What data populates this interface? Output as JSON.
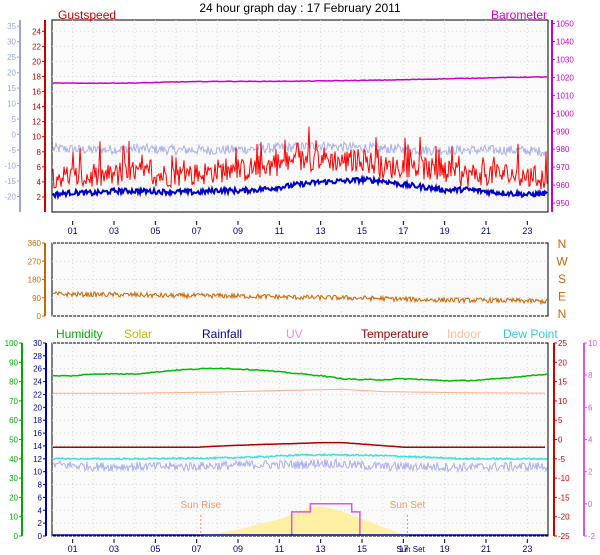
{
  "title": "24 hour graph day : 17 February 2011",
  "hour_labels": [
    "01",
    "03",
    "05",
    "07",
    "09",
    "11",
    "13",
    "15",
    "17",
    "19",
    "21",
    "23"
  ],
  "sun": {
    "rise_label": "Sun Rise",
    "set_label": "Sun Set",
    "sun_set_tick": "Sun Set",
    "rise_hour": 7.2,
    "set_hour": 17.2
  },
  "colors": {
    "gustspeed": "#ff0000",
    "windspeed": "#0000cc",
    "windchill": "#aab0ee",
    "barometer": "#cc00cc",
    "direction": "#cc6600",
    "humidity": "#00bb00",
    "solar": "#ffee99",
    "rainfall": "#0000aa",
    "uv": "#dd55dd",
    "temperature": "#aa0000",
    "indoor": "#ffaa88",
    "dewpoint": "#44dddd",
    "hour_labels": "#000080"
  },
  "chart_data": [
    {
      "type": "line",
      "name": "wind-barometer",
      "legend": {
        "gustspeed": "Gustspeed",
        "barometer": "Barometer"
      },
      "x_range_hours": [
        0,
        24
      ],
      "axes": {
        "wind_left": {
          "ticks": [
            2,
            4,
            6,
            8,
            10,
            12,
            14,
            16,
            18,
            20,
            22,
            24
          ],
          "range": [
            0,
            25.5
          ]
        },
        "temp_outer_left": {
          "ticks": [
            35,
            30,
            25,
            20,
            15,
            10,
            5,
            0,
            -5,
            -10,
            -15,
            -20
          ],
          "range": [
            -25,
            37
          ]
        },
        "pressure_right": {
          "ticks": [
            950,
            960,
            970,
            980,
            990,
            1000,
            1010,
            1020,
            1030,
            1040,
            1050
          ],
          "range": [
            945,
            1052
          ]
        }
      },
      "series": [
        {
          "name": "Gustspeed",
          "axis": "wind_left",
          "x": [
            0,
            1,
            2,
            3,
            4,
            5,
            6,
            7,
            8,
            9,
            10,
            11,
            12,
            13,
            14,
            15,
            16,
            17,
            18,
            19,
            20,
            21,
            22,
            23,
            24
          ],
          "y": [
            4.8,
            4.6,
            4.6,
            4.9,
            5.2,
            4.9,
            4.9,
            5.0,
            5.5,
            5.4,
            6.0,
            6.4,
            6.8,
            7.2,
            6.7,
            7.0,
            5.8,
            6.2,
            5.8,
            5.1,
            4.9,
            5.1,
            5.0,
            4.7,
            4.3
          ]
        },
        {
          "x": [
            0,
            1,
            2,
            3,
            4,
            5,
            6,
            7,
            8,
            9,
            10,
            11,
            12,
            13,
            14,
            15,
            16,
            17,
            18,
            19,
            20,
            21,
            22,
            23,
            24
          ],
          "y": [
            2.3,
            2.6,
            2.5,
            2.8,
            2.8,
            2.7,
            2.7,
            2.6,
            2.9,
            2.8,
            3.0,
            3.3,
            3.7,
            4.0,
            4.1,
            4.3,
            4.1,
            3.6,
            3.3,
            2.9,
            3.0,
            2.7,
            2.5,
            2.3,
            2.5
          ]
        },
        {
          "axis": "temp_outer_left",
          "x": [
            0,
            2,
            4,
            6,
            8,
            10,
            12,
            13,
            14,
            16,
            18,
            20,
            22,
            24
          ],
          "y": [
            -4.5,
            -5,
            -4.5,
            -5,
            -5,
            -4.5,
            -4,
            -3.5,
            -4,
            -4.5,
            -5,
            -5,
            -5,
            -5.5
          ]
        },
        {
          "name": "Barometer",
          "axis": "pressure_right",
          "x": [
            0,
            2,
            4,
            6,
            8,
            10,
            12,
            14,
            16,
            18,
            20,
            22,
            24
          ],
          "y": [
            1016.8,
            1016.8,
            1016.9,
            1017.5,
            1017.8,
            1017.8,
            1017.9,
            1018.2,
            1018.5,
            1019.0,
            1019.5,
            1020.0,
            1020.3
          ]
        }
      ]
    },
    {
      "type": "line",
      "name": "wind-direction",
      "x_range_hours": [
        0,
        24
      ],
      "axes": {
        "degrees_left": {
          "ticks": [
            0,
            90,
            180,
            270,
            360
          ],
          "range": [
            0,
            360
          ]
        },
        "compass_right": {
          "labels": [
            "N",
            "W",
            "S",
            "E",
            "N"
          ]
        }
      },
      "series": [
        {
          "x": [
            0,
            2,
            4,
            6,
            8,
            10,
            12,
            14,
            16,
            18,
            20,
            22,
            24
          ],
          "y": [
            108,
            106,
            104,
            100,
            100,
            97,
            92,
            90,
            86,
            80,
            78,
            76,
            72
          ]
        }
      ]
    },
    {
      "type": "line",
      "name": "humidity-temperature-rain-solar",
      "x_range_hours": [
        0,
        24
      ],
      "legend": {
        "humidity": "Humidity",
        "solar": "Solar",
        "rainfall": "Rainfall",
        "uv": "UV",
        "temperature": "Temperature",
        "indoor": "Indoor",
        "dewpoint": "Dew Point"
      },
      "axes": {
        "humidity_left": {
          "ticks": [
            0,
            10,
            20,
            30,
            40,
            50,
            60,
            70,
            80,
            90,
            100
          ],
          "range": [
            0,
            100
          ]
        },
        "rain_inner_left": {
          "ticks": [
            0,
            2,
            4,
            6,
            8,
            10,
            12,
            14,
            16,
            18,
            20,
            22,
            24,
            26,
            28,
            30
          ],
          "range": [
            0,
            30
          ]
        },
        "temp_right": {
          "ticks": [
            -25,
            -20,
            -15,
            -10,
            -5,
            0,
            5,
            10,
            15,
            20,
            25
          ],
          "range": [
            -25,
            25
          ]
        },
        "uv_right": {
          "ticks": [
            -2,
            0,
            2,
            4,
            6,
            8,
            10
          ],
          "range": [
            -2,
            10
          ]
        }
      },
      "series": [
        {
          "name": "Humidity",
          "axis": "humidity_left",
          "x": [
            0,
            1,
            2,
            3,
            4,
            5,
            6,
            7,
            8,
            9,
            10,
            11,
            12,
            13,
            14,
            15,
            16,
            17,
            18,
            19,
            20,
            21,
            22,
            23,
            24
          ],
          "y": [
            83,
            83,
            84,
            84,
            84,
            85,
            86,
            86.5,
            87,
            86.5,
            86,
            85,
            84,
            83,
            81.5,
            81,
            81,
            81.5,
            81,
            80.5,
            80.5,
            81,
            82,
            83,
            84
          ]
        },
        {
          "name": "Indoor",
          "axis": "temp_right",
          "x": [
            0,
            4,
            8,
            12,
            14,
            16,
            20,
            24
          ],
          "y": [
            12,
            12,
            12.3,
            12.8,
            13,
            12.4,
            12.1,
            12
          ]
        },
        {
          "name": "Temperature",
          "axis": "temp_right",
          "x": [
            0,
            4,
            7,
            8,
            10,
            12,
            13,
            14,
            15,
            16,
            17,
            18,
            20,
            22,
            24
          ],
          "y": [
            -2,
            -2,
            -2,
            -1.7,
            -1.3,
            -1.0,
            -0.8,
            -0.8,
            -1.2,
            -1.6,
            -2,
            -2,
            -2,
            -2,
            -2
          ]
        },
        {
          "name": "Dew Point",
          "axis": "temp_right",
          "x": [
            0,
            4,
            8,
            10,
            12,
            14,
            16,
            18,
            20,
            22,
            24
          ],
          "y": [
            -5,
            -5,
            -4.8,
            -4.5,
            -4,
            -4,
            -4.2,
            -4.6,
            -5,
            -5,
            -5
          ]
        },
        {
          "axis": "temp_right",
          "x": [
            0,
            2,
            4,
            6,
            8,
            10,
            12,
            13,
            14,
            16,
            18,
            20,
            22,
            24
          ],
          "y": [
            -6.5,
            -7,
            -7,
            -7,
            -6.8,
            -6.5,
            -6.5,
            -6,
            -6.5,
            -7,
            -7,
            -7.2,
            -7,
            -7
          ]
        },
        {
          "name": "Solar",
          "axis": "rain_inner_left",
          "x": [
            7.2,
            8,
            9,
            10,
            11,
            12,
            12.5,
            13,
            13.5,
            14,
            15,
            16,
            17.2
          ],
          "y": [
            0,
            0.4,
            1.0,
            1.8,
            2.6,
            3.8,
            4.4,
            4.6,
            4.3,
            3.8,
            2.7,
            1.4,
            0
          ]
        },
        {
          "name": "UV",
          "axis": "uv_right",
          "x": [
            11.6,
            11.6,
            12.5,
            12.5,
            14.5,
            14.5,
            14.9,
            14.9
          ],
          "y": [
            -2,
            -0.5,
            -0.5,
            0,
            0,
            -0.5,
            -0.5,
            -2
          ]
        },
        {
          "name": "Rainfall",
          "axis": "rain_inner_left",
          "x": [
            0,
            24
          ],
          "y": [
            0,
            0
          ]
        }
      ]
    }
  ]
}
